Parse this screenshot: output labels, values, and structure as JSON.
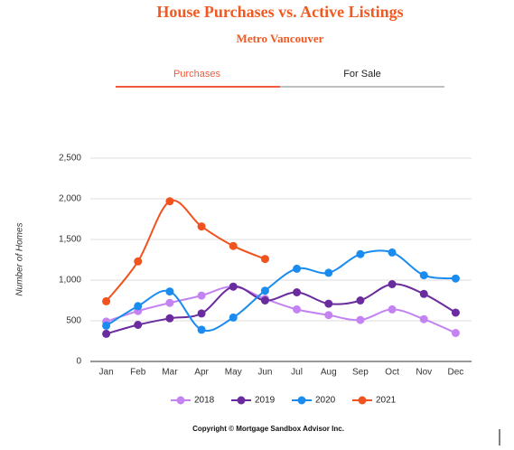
{
  "tabs": [
    "Purchases",
    "For Sale"
  ],
  "copyright": "Copyright © Mortgage Sandbox Advisor Inc.",
  "chart_data": {
    "type": "line",
    "title": "House Purchases vs. Active Listings",
    "subtitle": "Metro Vancouver",
    "y_label": "Number of Homes",
    "categories": [
      "Jan",
      "Feb",
      "Mar",
      "Apr",
      "May",
      "Jun",
      "Jul",
      "Aug",
      "Sep",
      "Oct",
      "Nov",
      "Dec"
    ],
    "series": [
      {
        "name": "2018",
        "color": "#c383f2",
        "values": [
          490,
          620,
          720,
          810,
          920,
          770,
          640,
          570,
          510,
          640,
          520,
          350
        ]
      },
      {
        "name": "2019",
        "color": "#6a2b9f",
        "values": [
          340,
          450,
          530,
          590,
          920,
          750,
          850,
          710,
          750,
          950,
          830,
          600
        ]
      },
      {
        "name": "2020",
        "color": "#1a8cf0",
        "values": [
          440,
          680,
          860,
          390,
          540,
          870,
          1140,
          1090,
          1320,
          1340,
          1060,
          1020
        ]
      },
      {
        "name": "2021",
        "color": "#f0531e",
        "values": [
          740,
          1230,
          1970,
          1660,
          1420,
          1260,
          null,
          null,
          null,
          null,
          null,
          null
        ]
      }
    ],
    "ylim": [
      0,
      2500
    ],
    "yticks": [
      0,
      500,
      {
        "value": 1000,
        "label": "1,000"
      },
      {
        "value": 1500,
        "label": "1,500"
      },
      {
        "value": 2000,
        "label": "2,000"
      },
      {
        "value": 2500,
        "label": "2,500"
      }
    ],
    "grid": true,
    "legend": "bottom"
  }
}
